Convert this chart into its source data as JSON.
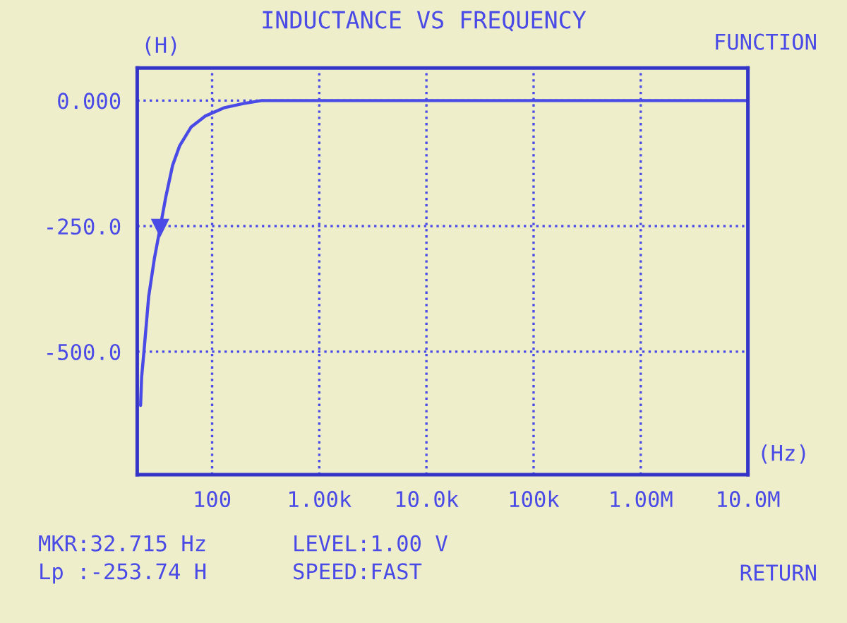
{
  "chart_data": {
    "type": "line",
    "title": "INDUCTANCE VS FREQUENCY",
    "xlabel": "(Hz)",
    "ylabel": "(H)",
    "log": "x",
    "x": [
      21.5,
      22,
      23,
      25.6,
      28.9,
      32.7,
      36.8,
      42.8,
      49.8,
      63.5,
      86,
      131,
      195,
      289,
      10000000
    ],
    "series": [
      {
        "color": "#4a4ae6",
        "values": [
          -607,
          -550,
          -505,
          -390,
          -315,
          -254,
          -194,
          -129,
          -90,
          -53,
          -31,
          -14,
          -6,
          0,
          0
        ]
      },
      {
        "type": "scatter",
        "marker": "triangle",
        "color": "#4a4ae6",
        "x": [
          32.715
        ],
        "values": [
          -254
        ]
      }
    ],
    "xlim": [
      20,
      10000000
    ],
    "xticks": [
      {
        "value": 100,
        "label": "100"
      },
      {
        "value": 1000,
        "label": "1.00k"
      },
      {
        "value": 10000,
        "label": "10.0k"
      },
      {
        "value": 100000,
        "label": "100k"
      },
      {
        "value": 1000000,
        "label": "1.00M"
      },
      {
        "value": 10000000,
        "label": "10.0M"
      }
    ],
    "ylim": [
      -745,
      65
    ],
    "yticks": [
      {
        "value": 0,
        "label": "0.000"
      },
      {
        "value": -250,
        "label": "-250.0"
      },
      {
        "value": -500,
        "label": "-500.0"
      }
    ],
    "grid": true,
    "annotations": [
      "FUNCTION",
      "MKR:32.715 Hz",
      "Lp :-253.74 H",
      "LEVEL:1.00 V",
      "SPEED:FAST",
      "RETURN"
    ]
  }
}
